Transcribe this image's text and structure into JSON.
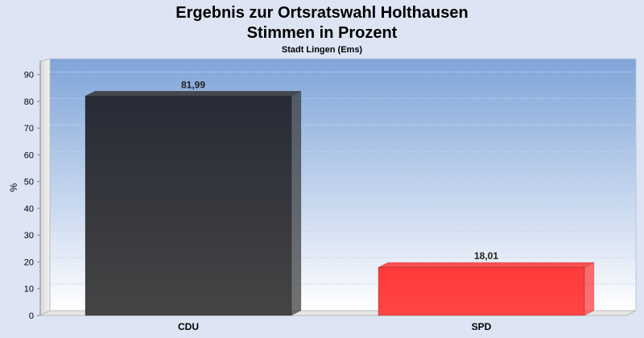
{
  "chart_data": {
    "type": "bar",
    "title_line1": "Ergebnis zur Ortsratswahl Holthausen",
    "title_line2": "Stimmen in Prozent",
    "subtitle": "Stadt Lingen (Ems)",
    "ylabel": "%",
    "xlabel": "",
    "ylim": [
      0,
      95
    ],
    "yticks": [
      0,
      10,
      20,
      30,
      40,
      50,
      60,
      70,
      80,
      90
    ],
    "grid": true,
    "legend": "none",
    "categories": [
      "CDU",
      "SPD"
    ],
    "values": [
      81.99,
      18.01
    ],
    "value_labels": [
      "81,99",
      "18,01"
    ],
    "colors": [
      "#363636",
      "#ff3333"
    ]
  }
}
